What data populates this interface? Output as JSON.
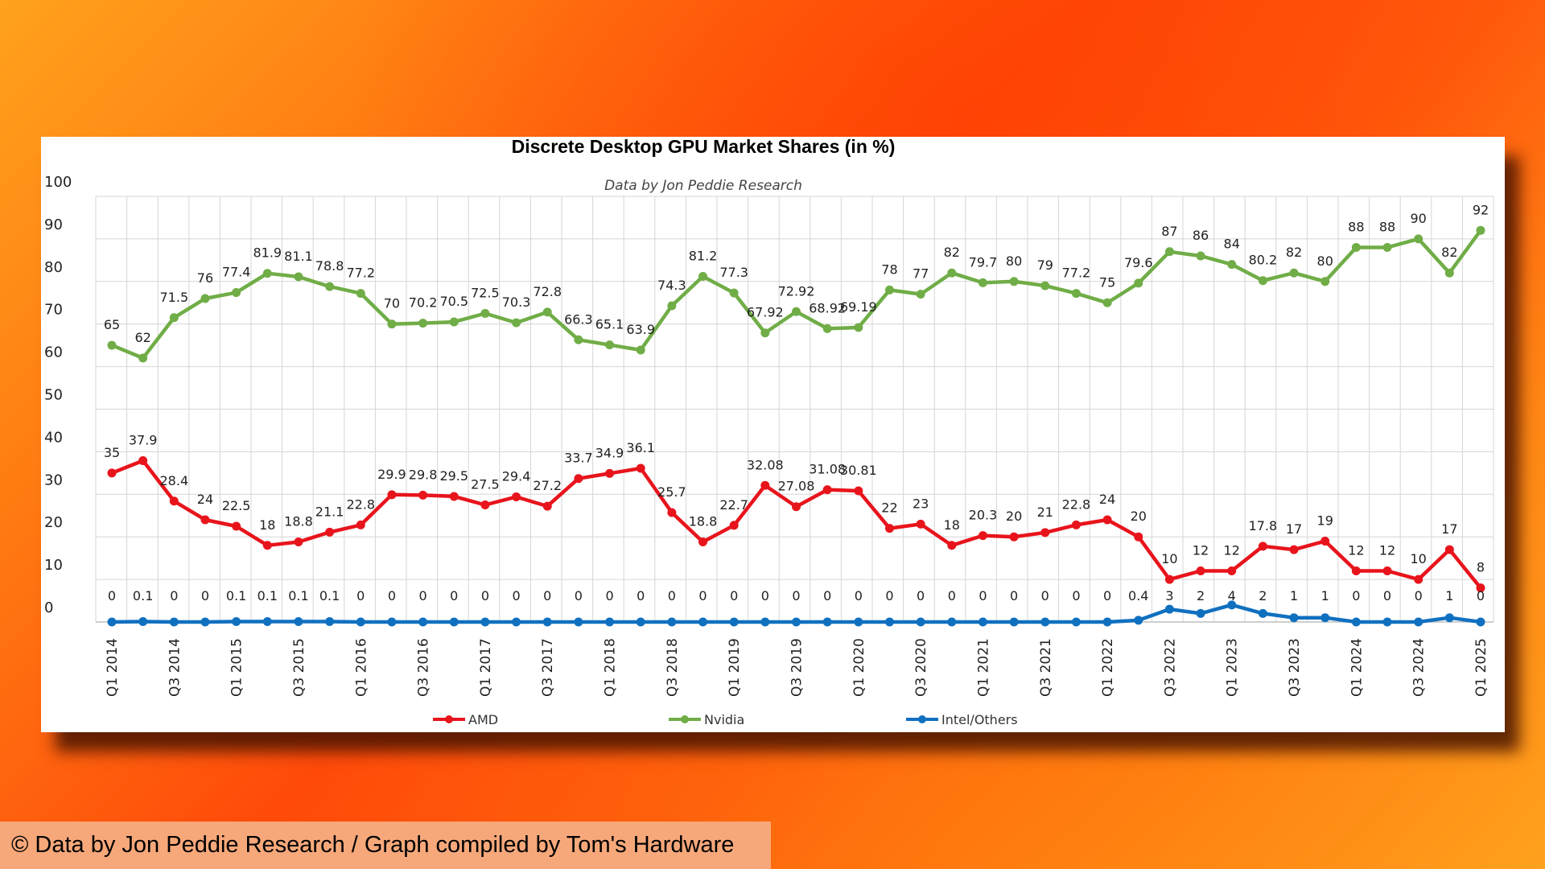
{
  "caption": "© Data by Jon Peddie Research / Graph compiled by Tom's Hardware",
  "chart_data": {
    "type": "line",
    "title": "Discrete Desktop GPU Market Shares (in %)",
    "subtitle": "Data by Jon Peddie Research",
    "ylim": [
      0,
      100
    ],
    "yticks": [
      0,
      10,
      20,
      30,
      40,
      50,
      60,
      70,
      80,
      90,
      100
    ],
    "grid": true,
    "legend_position": "bottom",
    "x_tick_labels": [
      "Q1 2014",
      "Q3 2014",
      "Q1 2015",
      "Q3 2015",
      "Q1 2016",
      "Q3 2016",
      "Q1 2017",
      "Q3 2017",
      "Q1 2018",
      "Q3 2018",
      "Q1 2019",
      "Q3 2019",
      "Q1 2020",
      "Q3 2020",
      "Q1 2021",
      "Q3 2021",
      "Q1 2022",
      "Q3 2022",
      "Q1 2023",
      "Q3 2023",
      "Q1 2024",
      "Q3 2024",
      "Q1 2025"
    ],
    "x_count": 45,
    "series": [
      {
        "name": "AMD",
        "color": "#e8141c",
        "values": [
          35,
          37.9,
          28.4,
          24,
          22.5,
          18,
          18.8,
          21.1,
          22.8,
          29.9,
          29.8,
          29.5,
          27.5,
          29.4,
          27.2,
          33.7,
          34.9,
          36.1,
          25.7,
          18.8,
          22.7,
          32.08,
          27.08,
          31.08,
          30.81,
          22,
          23,
          18,
          20.3,
          20,
          21,
          22.8,
          24,
          20,
          10,
          12,
          12,
          17.8,
          17,
          19,
          12,
          12,
          10,
          17,
          8
        ]
      },
      {
        "name": "Nvidia",
        "color": "#70ad47",
        "values": [
          65,
          62,
          71.5,
          76,
          77.4,
          81.9,
          81.1,
          78.8,
          77.2,
          70,
          70.2,
          70.5,
          72.5,
          70.3,
          72.8,
          66.3,
          65.1,
          63.9,
          74.3,
          81.2,
          77.3,
          67.92,
          72.92,
          68.92,
          69.19,
          78,
          77,
          82,
          79.7,
          80,
          79,
          77.2,
          75,
          79.6,
          87,
          86,
          84,
          80.2,
          82,
          80,
          88,
          88,
          90,
          82,
          92
        ]
      },
      {
        "name": "Intel/Others",
        "color": "#1070c0",
        "values": [
          0,
          0.1,
          0,
          0,
          0.1,
          0.1,
          0.1,
          0.1,
          0,
          0,
          0,
          0,
          0,
          0,
          0,
          0,
          0,
          0,
          0,
          0,
          0,
          0,
          0,
          0,
          0,
          0,
          0,
          0,
          0,
          0,
          0,
          0,
          0,
          0.4,
          3,
          2,
          4,
          2,
          1,
          1,
          0,
          0,
          0,
          1,
          0
        ]
      }
    ]
  }
}
